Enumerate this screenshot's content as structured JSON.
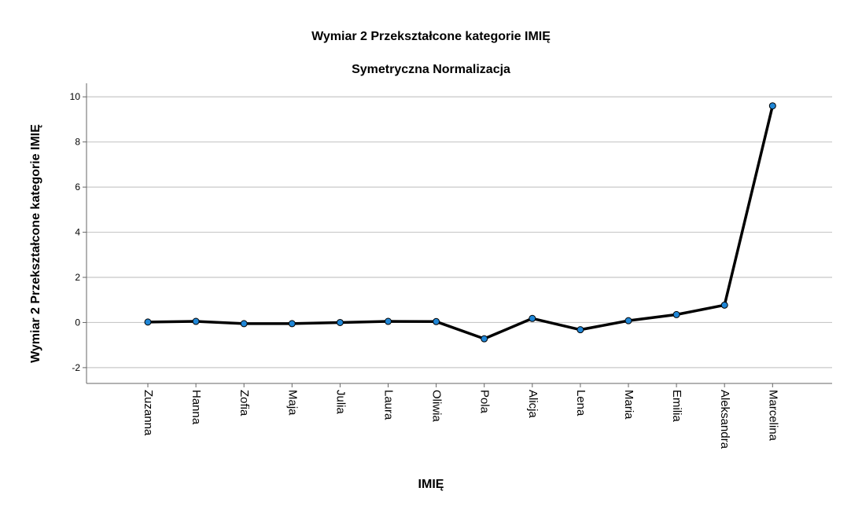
{
  "chart_data": {
    "type": "line",
    "title": "Wymiar 2 Przekształcone kategorie IMIĘ",
    "subtitle": "Symetryczna Normalizacja",
    "xlabel": "IMIĘ",
    "ylabel": "Wymiar 2 Przekształcone kategorie IMIĘ",
    "categories": [
      "Zuzanna",
      "Hanna",
      "Zofia",
      "Maja",
      "Julia",
      "Laura",
      "Oliwia",
      "Pola",
      "Alicja",
      "Lena",
      "Maria",
      "Emilia",
      "Aleksandra",
      "Marcelina"
    ],
    "values": [
      0.02,
      0.05,
      -0.05,
      -0.05,
      0.0,
      0.05,
      0.04,
      -0.72,
      0.18,
      -0.32,
      0.08,
      0.35,
      0.77,
      9.6
    ],
    "ylim": [
      -2.7,
      10.6
    ],
    "yticks": [
      -2,
      0,
      2,
      4,
      6,
      8,
      10
    ],
    "grid": true,
    "legend": false,
    "colors": {
      "line": "#000000",
      "marker": "#1f86d6",
      "grid": "#c8c8c8",
      "axis": "#666666"
    }
  }
}
